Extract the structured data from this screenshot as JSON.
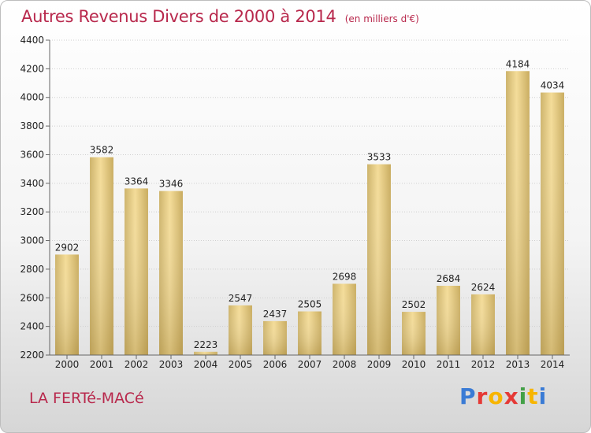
{
  "header": {
    "title": "Autres Revenus Divers de 2000 à 2014",
    "subtitle": "(en milliers d'€)"
  },
  "footer": {
    "city": "LA FERTé-MACé",
    "logo": "Proxiti",
    "logo_colors": [
      "#3a7bd5",
      "#e53935",
      "#f7b500",
      "#e53935",
      "#43a047",
      "#f7b500",
      "#3a7bd5"
    ]
  },
  "chart_data": {
    "type": "bar",
    "categories": [
      "2000",
      "2001",
      "2002",
      "2003",
      "2004",
      "2005",
      "2006",
      "2007",
      "2008",
      "2009",
      "2010",
      "2011",
      "2012",
      "2013",
      "2014"
    ],
    "values": [
      2902,
      3582,
      3364,
      3346,
      2223,
      2547,
      2437,
      2505,
      2698,
      3533,
      2502,
      2684,
      2624,
      4184,
      4034
    ],
    "ylim": [
      2200,
      4400
    ],
    "yticks": [
      2200,
      2400,
      2600,
      2800,
      3000,
      3200,
      3400,
      3600,
      3800,
      4000,
      4200,
      4400
    ],
    "grid": true,
    "bar_color": "#e6cb84",
    "title": "Autres Revenus Divers de 2000 à 2014",
    "xlabel": "",
    "ylabel": ""
  }
}
